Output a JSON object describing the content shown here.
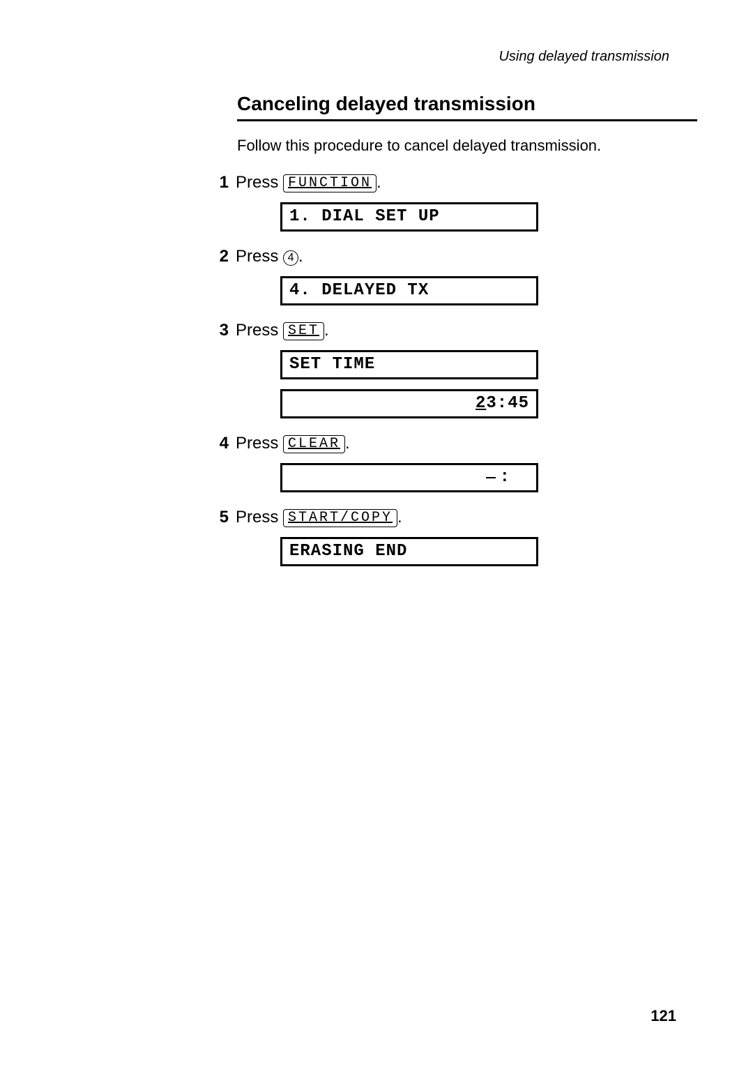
{
  "header": "Using delayed transmission",
  "title": "Canceling delayed transmission",
  "intro": "Follow this procedure to cancel delayed transmission.",
  "steps": [
    {
      "num": "1",
      "verb": "Press ",
      "key": "FUNCTION",
      "keyType": "cap",
      "displays": [
        {
          "text": "1. DIAL SET UP",
          "align": "left"
        }
      ]
    },
    {
      "num": "2",
      "verb": "Press ",
      "key": "4",
      "keyType": "circle",
      "displays": [
        {
          "text": "4. DELAYED TX",
          "align": "left"
        }
      ]
    },
    {
      "num": "3",
      "verb": "Press ",
      "key": "SET",
      "keyType": "cap",
      "displays": [
        {
          "text": "SET TIME",
          "align": "left"
        },
        {
          "text": "23:45",
          "align": "right",
          "cursorFirst": true
        }
      ]
    },
    {
      "num": "4",
      "verb": "Press ",
      "key": "CLEAR",
      "keyType": "cap",
      "displays": [
        {
          "text": "_ :",
          "align": "right",
          "blankCursor": true
        }
      ]
    },
    {
      "num": "5",
      "verb": "Press ",
      "key": "START/COPY",
      "keyType": "cap",
      "displays": [
        {
          "text": "ERASING END",
          "align": "left"
        }
      ]
    }
  ],
  "pageNumber": "121"
}
